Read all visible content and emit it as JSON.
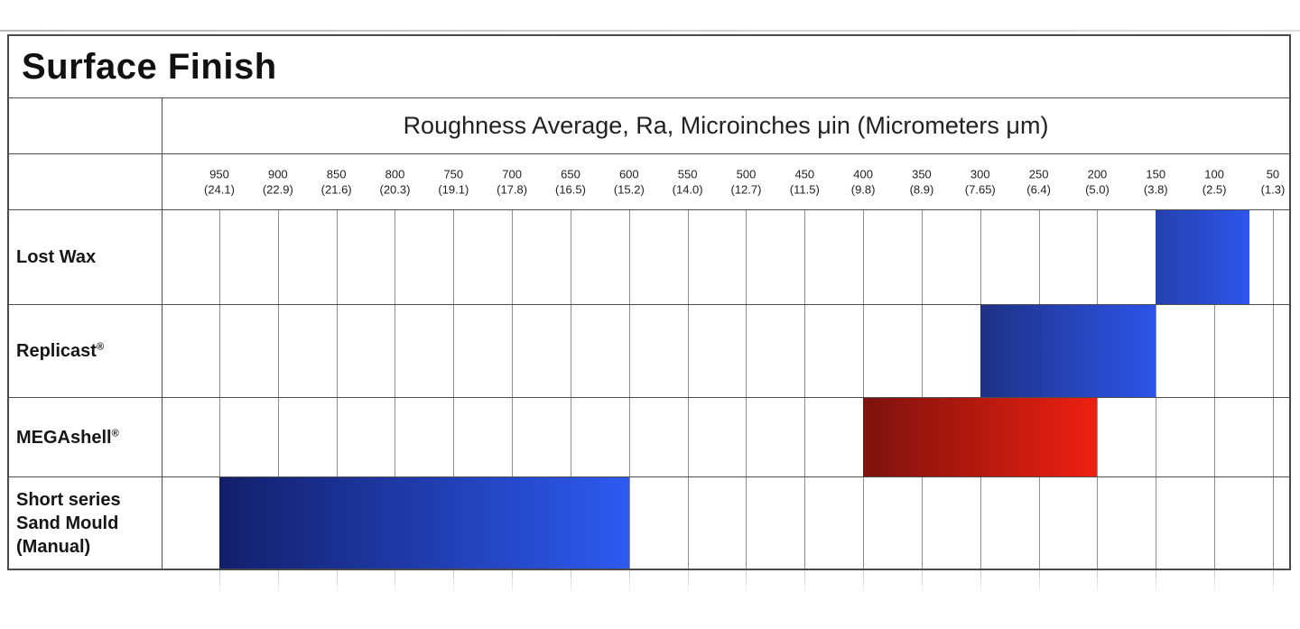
{
  "chart": {
    "title": "Surface Finish",
    "axis_title": "Roughness Average, Ra, Microinches μin (Micrometers μm)"
  },
  "chart_data": {
    "type": "bar",
    "subtype": "horizontal-range-bars",
    "title": "Surface Finish",
    "axis_title": "Roughness Average, Ra, Microinches μin (Micrometers μm)",
    "axis": {
      "unit_primary": "μin",
      "unit_secondary": "μm",
      "max": 950,
      "min": 50,
      "step": 50,
      "direction": "values decrease left to right"
    },
    "ticks": [
      {
        "uin": "950",
        "um": "(24.1)"
      },
      {
        "uin": "900",
        "um": "(22.9)"
      },
      {
        "uin": "850",
        "um": "(21.6)"
      },
      {
        "uin": "800",
        "um": "(20.3)"
      },
      {
        "uin": "750",
        "um": "(19.1)"
      },
      {
        "uin": "700",
        "um": "(17.8)"
      },
      {
        "uin": "650",
        "um": "(16.5)"
      },
      {
        "uin": "600",
        "um": "(15.2)"
      },
      {
        "uin": "550",
        "um": "(14.0)"
      },
      {
        "uin": "500",
        "um": "(12.7)"
      },
      {
        "uin": "450",
        "um": "(11.5)"
      },
      {
        "uin": "400",
        "um": "(9.8)"
      },
      {
        "uin": "350",
        "um": "(8.9)"
      },
      {
        "uin": "300",
        "um": "(7.65)"
      },
      {
        "uin": "250",
        "um": "(6.4)"
      },
      {
        "uin": "200",
        "um": "(5.0)"
      },
      {
        "uin": "150",
        "um": "(3.8)"
      },
      {
        "uin": "100",
        "um": "(2.5)"
      },
      {
        "uin": "50",
        "um": "(1.3)"
      }
    ],
    "series": [
      {
        "label": "Lost Wax",
        "reg_mark": "",
        "label_lines": null,
        "range_uin": [
          150,
          70
        ],
        "range_um_approx": [
          3.8,
          1.8
        ],
        "bar_color_from": "#2441ae",
        "bar_color_to": "#2e55ec"
      },
      {
        "label": "Replicast",
        "reg_mark": "®",
        "label_lines": null,
        "range_uin": [
          300,
          150
        ],
        "range_um_approx": [
          7.65,
          3.8
        ],
        "bar_color_from": "#1e3186",
        "bar_color_to": "#2d54e9"
      },
      {
        "label": "MEGAshell",
        "reg_mark": "®",
        "label_lines": null,
        "range_uin": [
          400,
          200
        ],
        "range_um_approx": [
          9.8,
          5.0
        ],
        "bar_color_from": "#7d120d",
        "bar_color_to": "#ee2011"
      },
      {
        "label": "Short series Sand Mould (Manual)",
        "reg_mark": "",
        "label_lines": [
          "Short series",
          "Sand Mould",
          "(Manual)"
        ],
        "range_uin": [
          950,
          600
        ],
        "range_um_approx": [
          24.1,
          15.2
        ],
        "bar_color_from": "#121f6b",
        "bar_color_to": "#2e5af0"
      }
    ],
    "gridlines": true,
    "legend": false
  },
  "colors": {
    "grid": "#8f8f8f",
    "frame": "#4a4a4a",
    "accent_blue": "#2e55ec",
    "accent_red": "#ee2011"
  }
}
